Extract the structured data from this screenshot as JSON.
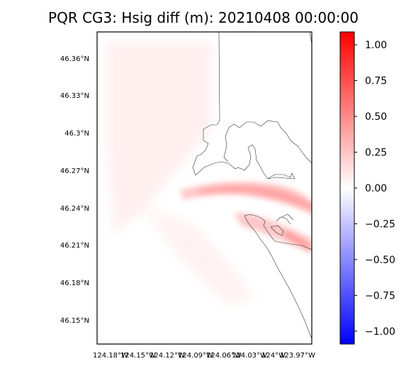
{
  "title": "PQR CG3: Hsig diff (m): 20210408 00:00:00",
  "map": {
    "lat_labels": [
      "46.36°N",
      "46.33°N",
      "46.3°N",
      "46.27°N",
      "46.24°N",
      "46.21°N",
      "46.18°N",
      "46.15°N"
    ],
    "lon_labels": [
      "124.18°W",
      "124.15°W",
      "124.12°W",
      "124.09°W",
      "124.06°W",
      "124.03°W",
      "124°W",
      "123.97°W"
    ]
  },
  "colorbar": {
    "colormap": "bwr",
    "min": -1.09,
    "max": 1.09,
    "tick_labels": [
      "1.00",
      "0.75",
      "0.50",
      "0.25",
      "0.00",
      "−0.25",
      "−0.50",
      "−0.75",
      "−1.00"
    ],
    "tick_values": [
      1.0,
      0.75,
      0.5,
      0.25,
      0.0,
      -0.25,
      -0.5,
      -0.75,
      -1.0
    ],
    "colors": {
      "low": "#0000ff",
      "mid": "#ffffff",
      "high": "#ff0000"
    }
  }
}
